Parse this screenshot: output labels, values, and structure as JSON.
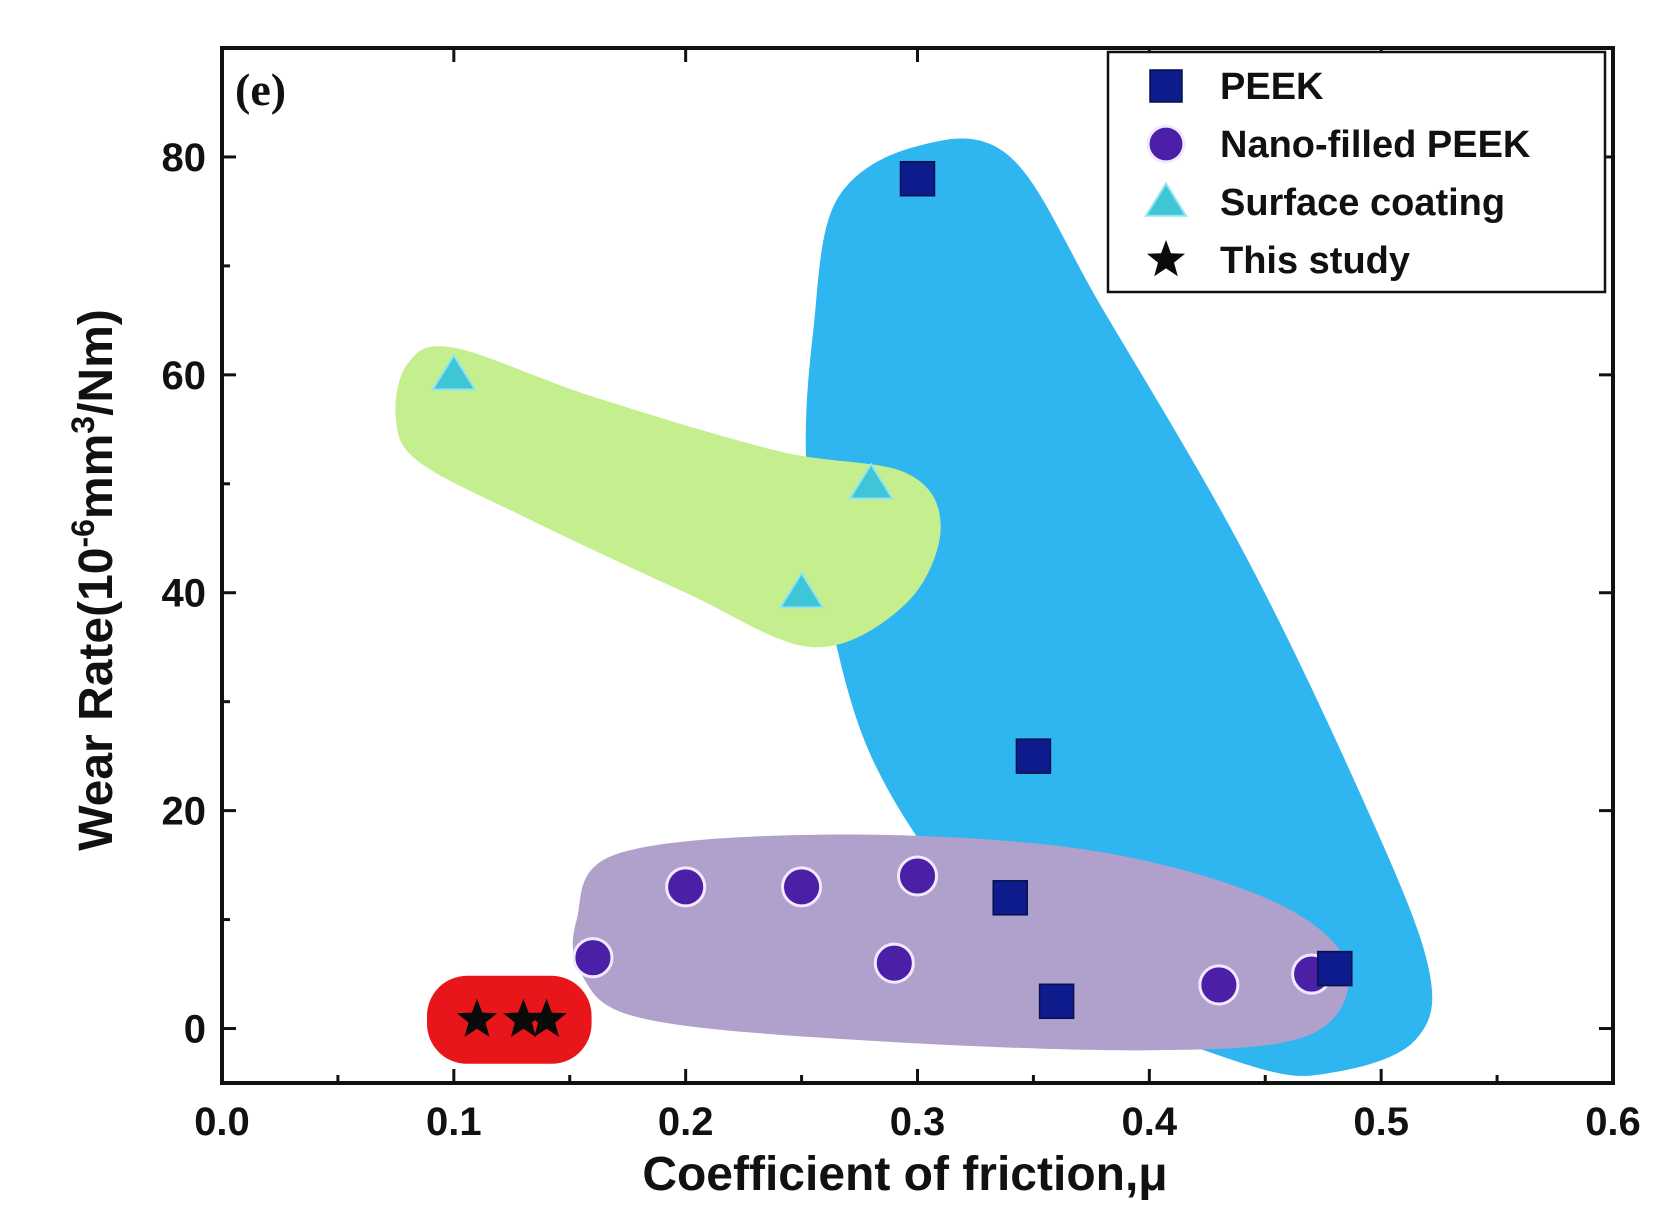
{
  "chart_data": {
    "type": "scatter",
    "panel_label": "(e)",
    "xlabel": "Coefficient of friction,μ",
    "ylabel_base": "Wear Rate(10",
    "ylabel_sup1": "-6",
    "ylabel_mid": "mm",
    "ylabel_sup2": "3",
    "ylabel_end": "/Nm)",
    "xlim": [
      0.0,
      0.6
    ],
    "ylim": [
      -5,
      90
    ],
    "xticks": [
      0.0,
      0.1,
      0.2,
      0.3,
      0.4,
      0.5,
      0.6
    ],
    "xtick_labels": [
      "0.0",
      "0.1",
      "0.2",
      "0.3",
      "0.4",
      "0.5",
      "0.6"
    ],
    "yticks": [
      0,
      20,
      40,
      60,
      80
    ],
    "ytick_labels": [
      "0",
      "20",
      "40",
      "60",
      "80"
    ],
    "legend_position": "top-right",
    "series": [
      {
        "name": "PEEK",
        "marker": "square",
        "color": "#0d1b8c",
        "points": [
          {
            "x": 0.3,
            "y": 78
          },
          {
            "x": 0.35,
            "y": 25
          },
          {
            "x": 0.34,
            "y": 12
          },
          {
            "x": 0.36,
            "y": 2.5
          },
          {
            "x": 0.48,
            "y": 5.5
          }
        ]
      },
      {
        "name": "Nano-filled PEEK",
        "marker": "circle",
        "color": "#4b1fa6",
        "points": [
          {
            "x": 0.16,
            "y": 6.5
          },
          {
            "x": 0.2,
            "y": 13
          },
          {
            "x": 0.25,
            "y": 13
          },
          {
            "x": 0.3,
            "y": 14
          },
          {
            "x": 0.29,
            "y": 6
          },
          {
            "x": 0.43,
            "y": 4
          },
          {
            "x": 0.47,
            "y": 5
          }
        ]
      },
      {
        "name": "Surface coating",
        "marker": "triangle",
        "color": "#3fc6d6",
        "points": [
          {
            "x": 0.1,
            "y": 60
          },
          {
            "x": 0.28,
            "y": 50
          },
          {
            "x": 0.25,
            "y": 40
          }
        ]
      },
      {
        "name": "This study",
        "marker": "star",
        "color": "#0a0a0a",
        "points": [
          {
            "x": 0.11,
            "y": 0.8
          },
          {
            "x": 0.13,
            "y": 0.8
          },
          {
            "x": 0.14,
            "y": 0.8
          }
        ]
      }
    ],
    "regions": [
      {
        "series": "PEEK",
        "color": "#2fb5f0",
        "outline": [
          {
            "x": 0.255,
            "y": 64
          },
          {
            "x": 0.265,
            "y": 76
          },
          {
            "x": 0.3,
            "y": 81
          },
          {
            "x": 0.34,
            "y": 80
          },
          {
            "x": 0.38,
            "y": 66
          },
          {
            "x": 0.44,
            "y": 44
          },
          {
            "x": 0.49,
            "y": 22
          },
          {
            "x": 0.52,
            "y": 6
          },
          {
            "x": 0.515,
            "y": -1
          },
          {
            "x": 0.48,
            "y": -4
          },
          {
            "x": 0.445,
            "y": -3.5
          },
          {
            "x": 0.37,
            "y": 3
          },
          {
            "x": 0.32,
            "y": 12
          },
          {
            "x": 0.28,
            "y": 25
          },
          {
            "x": 0.26,
            "y": 40
          },
          {
            "x": 0.252,
            "y": 52
          }
        ]
      },
      {
        "series": "Surface coating",
        "color": "#c5ef8f",
        "outline": [
          {
            "x": 0.075,
            "y": 56
          },
          {
            "x": 0.08,
            "y": 61
          },
          {
            "x": 0.1,
            "y": 62.5
          },
          {
            "x": 0.16,
            "y": 58
          },
          {
            "x": 0.24,
            "y": 53
          },
          {
            "x": 0.295,
            "y": 51
          },
          {
            "x": 0.31,
            "y": 46
          },
          {
            "x": 0.295,
            "y": 39
          },
          {
            "x": 0.255,
            "y": 35
          },
          {
            "x": 0.2,
            "y": 40
          },
          {
            "x": 0.13,
            "y": 47
          },
          {
            "x": 0.085,
            "y": 52
          }
        ]
      },
      {
        "series": "Nano-filled PEEK",
        "color": "#b0a0cc",
        "outline": [
          {
            "x": 0.153,
            "y": 10
          },
          {
            "x": 0.17,
            "y": 16
          },
          {
            "x": 0.26,
            "y": 17.8
          },
          {
            "x": 0.37,
            "y": 16.5
          },
          {
            "x": 0.45,
            "y": 12
          },
          {
            "x": 0.485,
            "y": 6
          },
          {
            "x": 0.47,
            "y": -0.5
          },
          {
            "x": 0.4,
            "y": -2
          },
          {
            "x": 0.27,
            "y": -1
          },
          {
            "x": 0.18,
            "y": 1
          },
          {
            "x": 0.155,
            "y": 5
          }
        ]
      },
      {
        "series": "This study",
        "color": "#e8151b"
      }
    ]
  }
}
